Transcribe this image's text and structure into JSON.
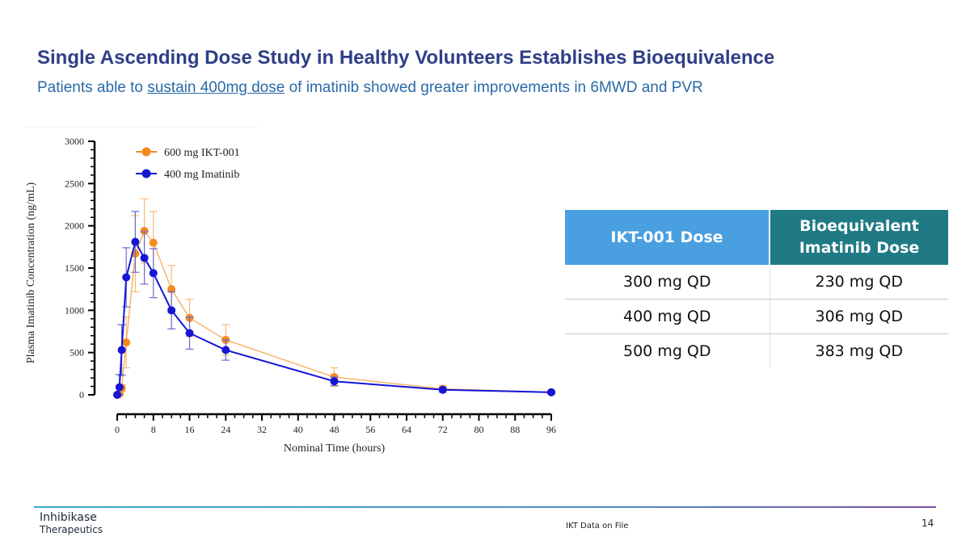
{
  "header": {
    "title": "Single Ascending Dose Study in Healthy Volunteers Establishes Bioequivalence",
    "subtitle_pre": "Patients able to ",
    "subtitle_link": "sustain 400mg dose",
    "subtitle_post": " of imatinib showed greater improvements in 6MWD and PVR"
  },
  "chart_data": {
    "type": "line",
    "title": "",
    "xlabel": "Nominal Time (hours)",
    "ylabel": "Plasma Imatinib Concentration (ng/mL)",
    "xlim": [
      0,
      96
    ],
    "ylim": [
      0,
      3000
    ],
    "xticks": [
      0,
      8,
      16,
      24,
      32,
      40,
      48,
      56,
      64,
      72,
      80,
      88,
      96
    ],
    "yticks": [
      0,
      500,
      1000,
      1500,
      2000,
      2500,
      3000
    ],
    "legend_position": "top-left",
    "series": [
      {
        "name": "600 mg IKT-001",
        "color": "#f5891f",
        "x": [
          0,
          0.5,
          1,
          2,
          4,
          6,
          8,
          12,
          16,
          24,
          48,
          72,
          96
        ],
        "y": [
          0,
          10,
          80,
          620,
          1670,
          1940,
          1800,
          1250,
          910,
          650,
          210,
          70,
          30
        ],
        "err": [
          0,
          5,
          40,
          300,
          450,
          380,
          370,
          280,
          220,
          180,
          110,
          40,
          20
        ]
      },
      {
        "name": "400 mg Imatinib",
        "color": "#1515d6",
        "x": [
          0,
          0.5,
          1,
          2,
          4,
          6,
          8,
          12,
          16,
          24,
          48,
          72,
          96
        ],
        "y": [
          0,
          90,
          530,
          1390,
          1810,
          1620,
          1440,
          1000,
          730,
          530,
          160,
          60,
          30
        ],
        "err": [
          0,
          150,
          300,
          350,
          360,
          310,
          290,
          220,
          190,
          120,
          50,
          30,
          15
        ]
      }
    ]
  },
  "table": {
    "headers": [
      "IKT-001 Dose",
      "Bioequivalent Imatinib Dose"
    ],
    "rows": [
      [
        "300 mg QD",
        "230 mg QD"
      ],
      [
        "400 mg QD",
        "306 mg QD"
      ],
      [
        "500 mg QD",
        "383 mg QD"
      ]
    ]
  },
  "footer": {
    "logo_line1": "Inhibikase",
    "logo_line2": "Therapeutics",
    "note": "IKT Data on File",
    "page_number": "14"
  }
}
